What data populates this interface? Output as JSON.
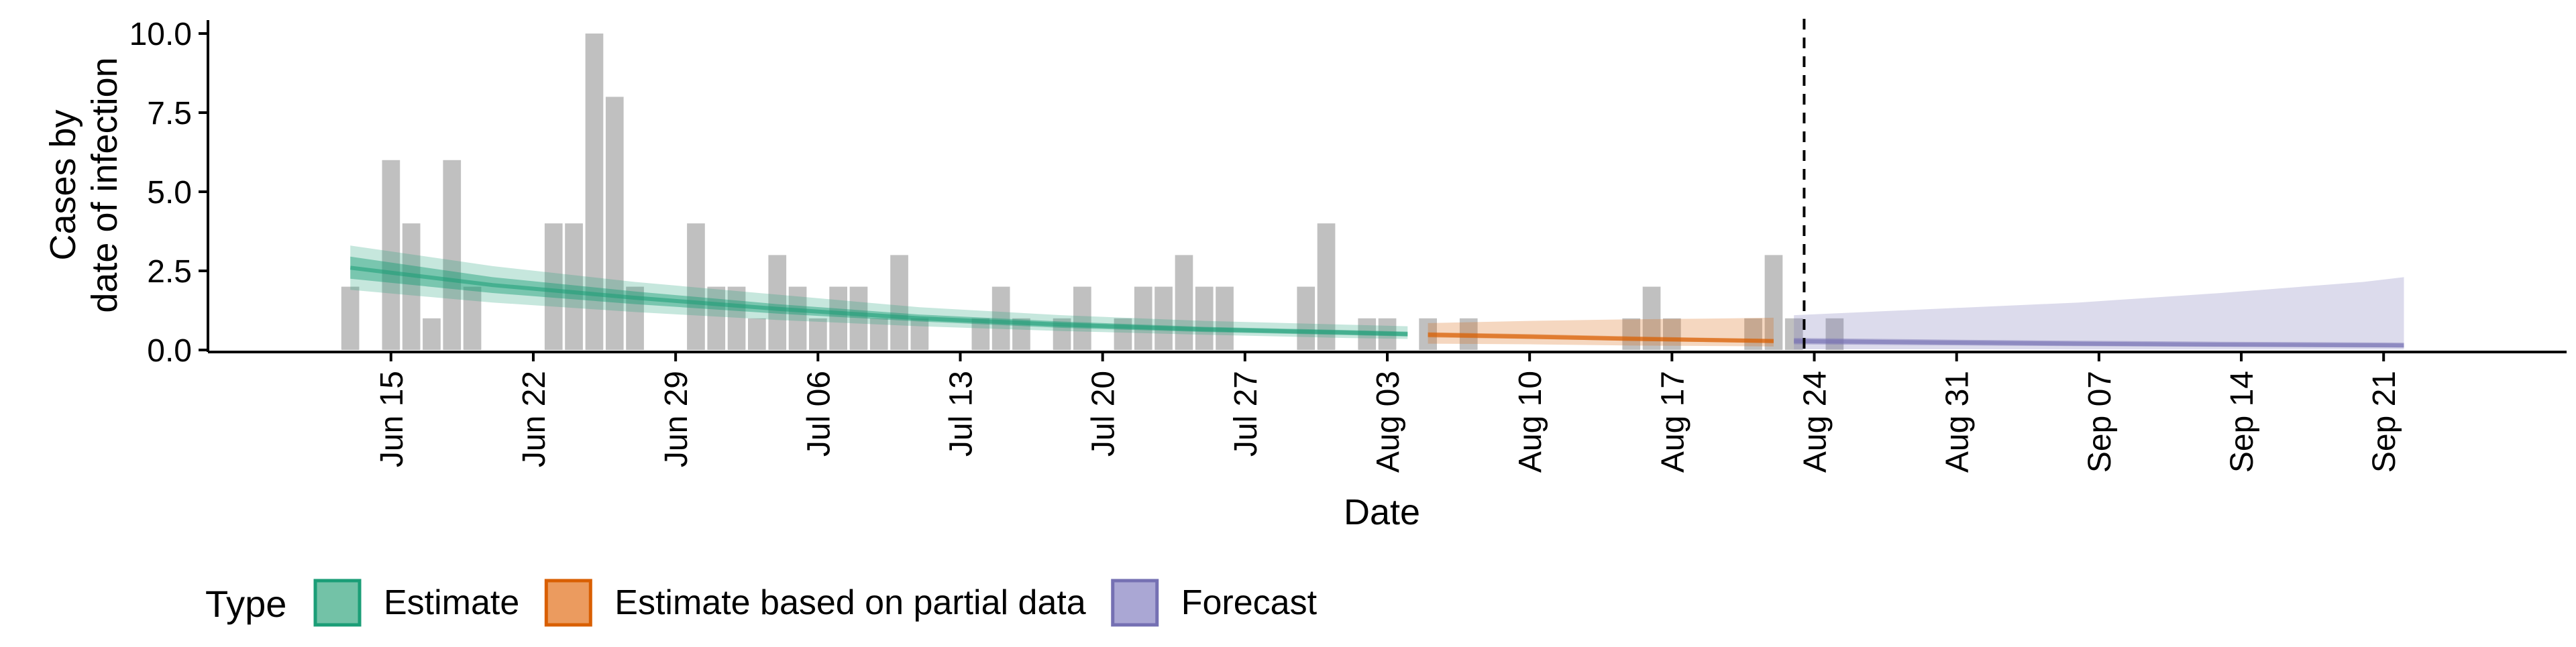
{
  "chart_data": {
    "type": "bar",
    "xlabel": "Date",
    "ylabel_lines": [
      "Cases by",
      "date of infection"
    ],
    "ylim": [
      0,
      10
    ],
    "y_ticks": [
      {
        "value": 0,
        "label": "0.0"
      },
      {
        "value": 2.5,
        "label": "2.5"
      },
      {
        "value": 5,
        "label": "5.0"
      },
      {
        "value": 7.5,
        "label": "7.5"
      },
      {
        "value": 10,
        "label": "10.0"
      }
    ],
    "x_ticks": [
      {
        "date": "2020-06-15",
        "label": "Jun 15"
      },
      {
        "date": "2020-06-22",
        "label": "Jun 22"
      },
      {
        "date": "2020-06-29",
        "label": "Jun 29"
      },
      {
        "date": "2020-07-06",
        "label": "Jul 06"
      },
      {
        "date": "2020-07-13",
        "label": "Jul 13"
      },
      {
        "date": "2020-07-20",
        "label": "Jul 20"
      },
      {
        "date": "2020-07-27",
        "label": "Jul 27"
      },
      {
        "date": "2020-08-03",
        "label": "Aug 03"
      },
      {
        "date": "2020-08-10",
        "label": "Aug 10"
      },
      {
        "date": "2020-08-17",
        "label": "Aug 17"
      },
      {
        "date": "2020-08-24",
        "label": "Aug 24"
      },
      {
        "date": "2020-08-31",
        "label": "Aug 31"
      },
      {
        "date": "2020-09-07",
        "label": "Sep 07"
      },
      {
        "date": "2020-09-14",
        "label": "Sep 14"
      },
      {
        "date": "2020-09-21",
        "label": "Sep 21"
      }
    ],
    "x_range": [
      "2020-06-06",
      "2020-09-30"
    ],
    "forecast_start": "2020-08-23",
    "reported_cases": {
      "start": "2020-06-13",
      "values": [
        2,
        0,
        6,
        4,
        1,
        6,
        2,
        0,
        0,
        0,
        4,
        4,
        10,
        8,
        2,
        0,
        0,
        4,
        2,
        2,
        1,
        3,
        2,
        1,
        2,
        2,
        1,
        3,
        1,
        0,
        0,
        1,
        2,
        1,
        0,
        1,
        2,
        0,
        1,
        2,
        2,
        3,
        2,
        2,
        0,
        0,
        0,
        2,
        4,
        0,
        1,
        1,
        0,
        1,
        0,
        1,
        0,
        0,
        0,
        0,
        0,
        0,
        0,
        1,
        2,
        1,
        0,
        0,
        0,
        1,
        3,
        1,
        0,
        1
      ]
    },
    "series": [
      {
        "name": "Estimate",
        "color": "#1b9e77",
        "x": [
          "2020-06-13",
          "2020-06-20",
          "2020-06-27",
          "2020-07-04",
          "2020-07-11",
          "2020-07-18",
          "2020-07-25",
          "2020-08-01",
          "2020-08-04"
        ],
        "median": [
          2.6,
          2.05,
          1.65,
          1.3,
          1.0,
          0.8,
          0.65,
          0.55,
          0.5
        ],
        "inner_lower": [
          2.25,
          1.8,
          1.45,
          1.15,
          0.9,
          0.7,
          0.57,
          0.47,
          0.43
        ],
        "inner_upper": [
          2.95,
          2.3,
          1.85,
          1.45,
          1.12,
          0.9,
          0.73,
          0.63,
          0.58
        ],
        "outer_lower": [
          1.9,
          1.5,
          1.2,
          0.95,
          0.75,
          0.6,
          0.48,
          0.38,
          0.35
        ],
        "outer_upper": [
          3.3,
          2.65,
          2.15,
          1.75,
          1.35,
          1.1,
          0.92,
          0.8,
          0.75
        ]
      },
      {
        "name": "Estimate based on partial data",
        "color": "#d95f02",
        "x": [
          "2020-08-05",
          "2020-08-10",
          "2020-08-15",
          "2020-08-20",
          "2020-08-22"
        ],
        "median": [
          0.48,
          0.42,
          0.35,
          0.3,
          0.28
        ],
        "inner_lower": [
          0.4,
          0.35,
          0.29,
          0.24,
          0.22
        ],
        "inner_upper": [
          0.56,
          0.5,
          0.43,
          0.37,
          0.35
        ],
        "outer_lower": [
          0.2,
          0.18,
          0.14,
          0.12,
          0.11
        ],
        "outer_upper": [
          0.85,
          0.92,
          0.97,
          1.0,
          1.02
        ]
      },
      {
        "name": "Forecast",
        "color": "#7570b3",
        "x": [
          "2020-08-23",
          "2020-08-30",
          "2020-09-06",
          "2020-09-13",
          "2020-09-20",
          "2020-09-22"
        ],
        "median": [
          0.28,
          0.24,
          0.2,
          0.17,
          0.15,
          0.14
        ],
        "inner_lower": [
          0.18,
          0.15,
          0.12,
          0.1,
          0.08,
          0.08
        ],
        "inner_upper": [
          0.38,
          0.33,
          0.29,
          0.26,
          0.24,
          0.23
        ],
        "outer_lower": [
          0.02,
          0.02,
          0.01,
          0.01,
          0.01,
          0.01
        ],
        "outer_upper": [
          1.1,
          1.3,
          1.5,
          1.8,
          2.15,
          2.3
        ]
      }
    ],
    "legend": {
      "title": "Type",
      "position": "bottom-left",
      "items": [
        {
          "label": "Estimate",
          "fill": "#73c2a7",
          "border": "#1b9e77"
        },
        {
          "label": "Estimate based on partial data",
          "fill": "#eb9b5f",
          "border": "#d95f02"
        },
        {
          "label": "Forecast",
          "fill": "#aaa7d4",
          "border": "#7570b3"
        }
      ]
    },
    "bar_color": "#bdbdbd",
    "grid": false
  }
}
